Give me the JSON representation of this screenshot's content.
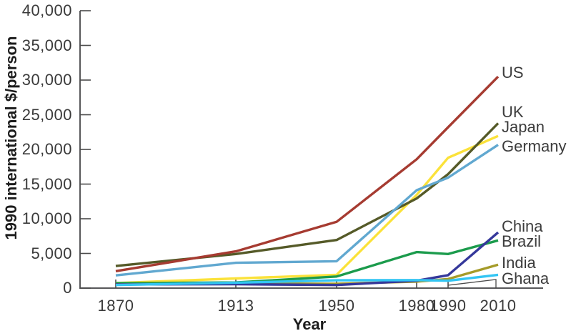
{
  "colors": {
    "axis": "#58585a",
    "tick": "#4a4a4a",
    "tick_text": "#3a3a3a",
    "label_text": "#3c3c3c"
  },
  "chart_data": {
    "type": "line",
    "title": "",
    "xlabel": "Year",
    "ylabel": "1990 international $/person",
    "x": [
      1870,
      1913,
      1950,
      1980,
      1990,
      2010
    ],
    "xtick_labels": [
      "1870",
      "1913",
      "1950",
      "1980",
      "1990",
      "2010"
    ],
    "ytick_values": [
      0,
      5000,
      10000,
      15000,
      20000,
      25000,
      30000,
      35000,
      40000
    ],
    "ytick_labels": [
      "0",
      "5,000",
      "10,000",
      "15,000",
      "20,000",
      "25,000",
      "30,000",
      "35,000",
      "40,000"
    ],
    "ylim": [
      0,
      40000
    ],
    "grid": false,
    "legend_position": "labels at right end of each line",
    "series": [
      {
        "name": "US",
        "color": "#a63b31",
        "values": [
          2445,
          5301,
          9561,
          18577,
          23201,
          30491
        ]
      },
      {
        "name": "UK",
        "color": "#555a28",
        "values": [
          3190,
          4921,
          6939,
          12931,
          16430,
          23777
        ]
      },
      {
        "name": "Japan",
        "color": "#fbe23a",
        "values": [
          737,
          1387,
          1921,
          13428,
          18789,
          21935
        ]
      },
      {
        "name": "Germany",
        "color": "#61a8d0",
        "values": [
          1839,
          3648,
          3881,
          14114,
          15929,
          20661
        ]
      },
      {
        "name": "China",
        "color": "#35389b",
        "values": [
          530,
          552,
          448,
          1061,
          1871,
          8032
        ]
      },
      {
        "name": "Brazil",
        "color": "#1b9b4c",
        "values": [
          713,
          811,
          1672,
          5195,
          4920,
          6879
        ]
      },
      {
        "name": "India",
        "color": "#a59b29",
        "values": [
          533,
          673,
          619,
          938,
          1309,
          3372
        ]
      },
      {
        "name": "Ghana",
        "color": "#33c5f3",
        "values": [
          439,
          781,
          1122,
          1157,
          1062,
          1922
        ]
      }
    ]
  }
}
